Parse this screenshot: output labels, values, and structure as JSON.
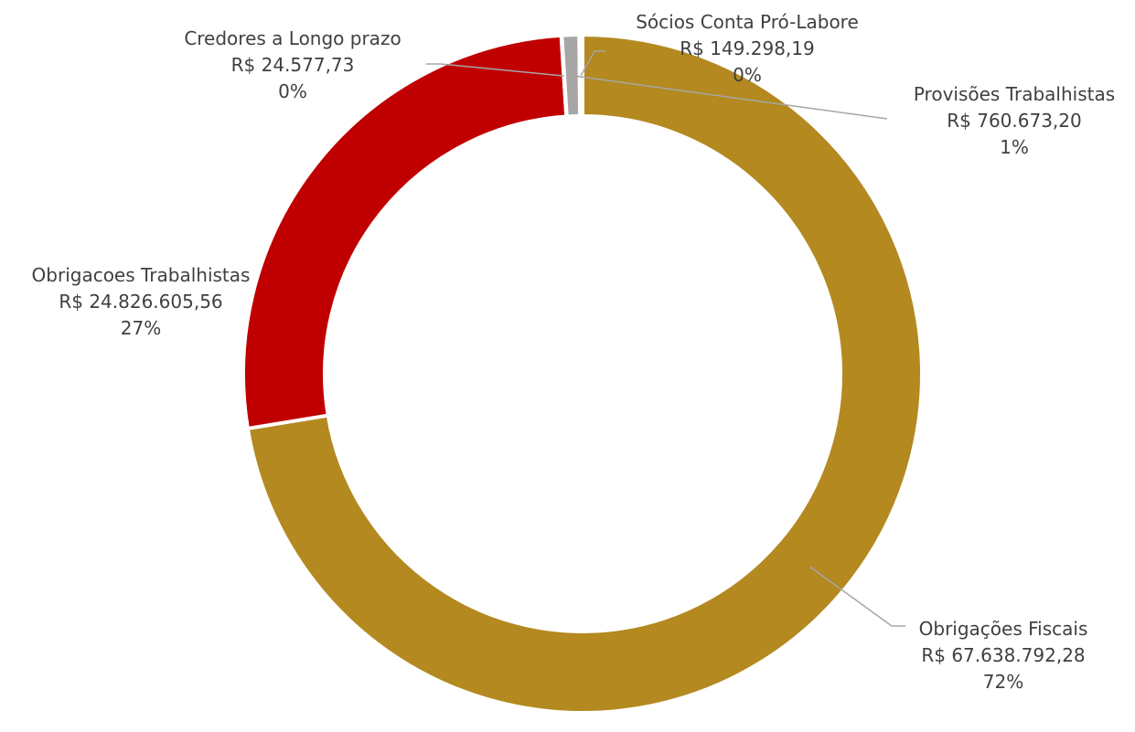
{
  "chart_data": {
    "type": "pie",
    "donut": true,
    "title": "",
    "slices": [
      {
        "name": "Obrigações Fiscais",
        "value": 67638792.28,
        "value_label": "R$ 67.638.792,28",
        "percent_label": "72%",
        "color": "#b38920"
      },
      {
        "name": "Obrigacoes Trabalhistas",
        "value": 24826605.56,
        "value_label": "R$ 24.826.605,56",
        "percent_label": "27%",
        "color": "#c00000"
      },
      {
        "name": "Credores a Longo prazo",
        "value": 24577.73,
        "value_label": "R$ 24.577,73",
        "percent_label": "0%",
        "color": "#bfbfbf"
      },
      {
        "name": "Provisões Trabalhistas",
        "value": 760673.2,
        "value_label": "R$ 760.673,20",
        "percent_label": "1%",
        "color": "#a6a6a6"
      },
      {
        "name": "Sócios Conta Pró-Labore",
        "value": 149298.19,
        "value_label": "R$ 149.298,19",
        "percent_label": "0%",
        "color": "#d9d9d9"
      }
    ],
    "legend": "none"
  }
}
